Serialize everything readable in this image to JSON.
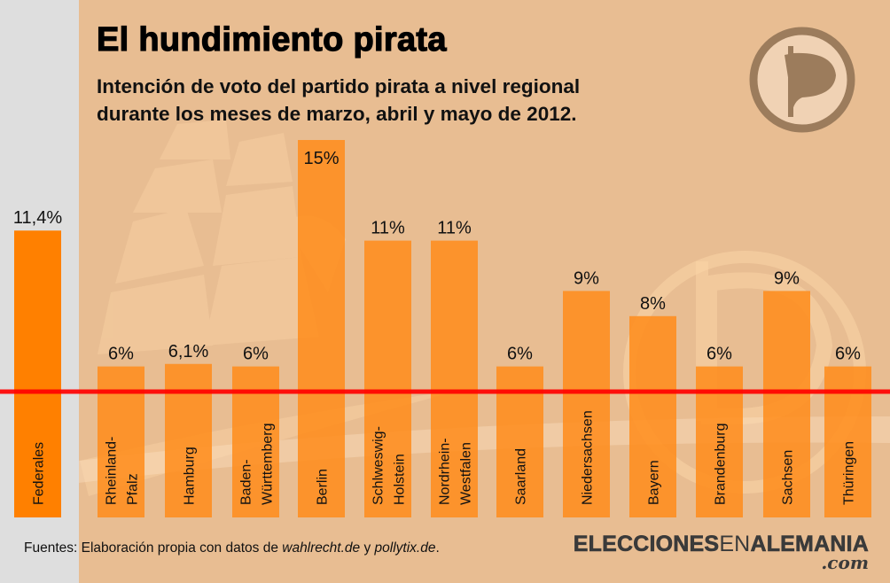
{
  "header": {
    "title": "El hundimiento pirata",
    "subtitle_lines": [
      "Intención de voto del partido pirata a nivel regional",
      "durante los meses de marzo, abril y mayo de 2012."
    ]
  },
  "footer": {
    "source_prefix": "Fuentes: Elaboración propia con datos de ",
    "source_link1": "wahlrecht.de",
    "source_mid": " y ",
    "source_link2": "pollytix.de",
    "source_suffix": ".",
    "brand_bold_1": "ELECCIONES",
    "brand_thin": "EN",
    "brand_bold_2": "ALEMANIA",
    "brand_tld": ".com"
  },
  "logo": {
    "icon": "pirate-party-flag-icon"
  },
  "colors": {
    "background": "#e8bd92",
    "federal_panel": "#dedede",
    "federal_bar": "#ff8000",
    "regional_bar": "#ff8c1a",
    "threshold_line": "#ff0000",
    "logo_ring": "#9c7c5c",
    "logo_fill": "#f0d2b4"
  },
  "chart_data": {
    "type": "bar",
    "title": "El hundimiento pirata",
    "subtitle": "Intención de voto del partido pirata a nivel regional durante los meses de marzo, abril y mayo de 2012.",
    "xlabel": "",
    "ylabel": "",
    "ylim": [
      0,
      15
    ],
    "grid": false,
    "legend": "none",
    "threshold": {
      "value": 5,
      "label": ""
    },
    "categories": [
      {
        "label_lines": [
          "Federales"
        ],
        "group": "federal"
      },
      {
        "label_lines": [
          "Rheinland-",
          "Pfalz"
        ],
        "group": "regional"
      },
      {
        "label_lines": [
          "Hamburg"
        ],
        "group": "regional"
      },
      {
        "label_lines": [
          "Baden-",
          "Württemberg"
        ],
        "group": "regional"
      },
      {
        "label_lines": [
          "Berlin"
        ],
        "group": "regional"
      },
      {
        "label_lines": [
          "Schlweswig-",
          "Holstein"
        ],
        "group": "regional"
      },
      {
        "label_lines": [
          "Nordrhein-",
          "Westfalen"
        ],
        "group": "regional"
      },
      {
        "label_lines": [
          "Saarland"
        ],
        "group": "regional"
      },
      {
        "label_lines": [
          "Niedersachsen"
        ],
        "group": "regional"
      },
      {
        "label_lines": [
          "Bayern"
        ],
        "group": "regional"
      },
      {
        "label_lines": [
          "Brandenburg"
        ],
        "group": "regional"
      },
      {
        "label_lines": [
          "Sachsen"
        ],
        "group": "regional"
      },
      {
        "label_lines": [
          "Thüringen"
        ],
        "group": "regional"
      }
    ],
    "values": [
      11.4,
      6,
      6.1,
      6,
      15,
      11,
      11,
      6,
      9,
      8,
      6,
      9,
      6
    ],
    "value_labels": [
      "11,4%",
      "6%",
      "6,1%",
      "6%",
      "15%",
      "11%",
      "11%",
      "6%",
      "9%",
      "8%",
      "6%",
      "9%",
      "6%"
    ]
  }
}
